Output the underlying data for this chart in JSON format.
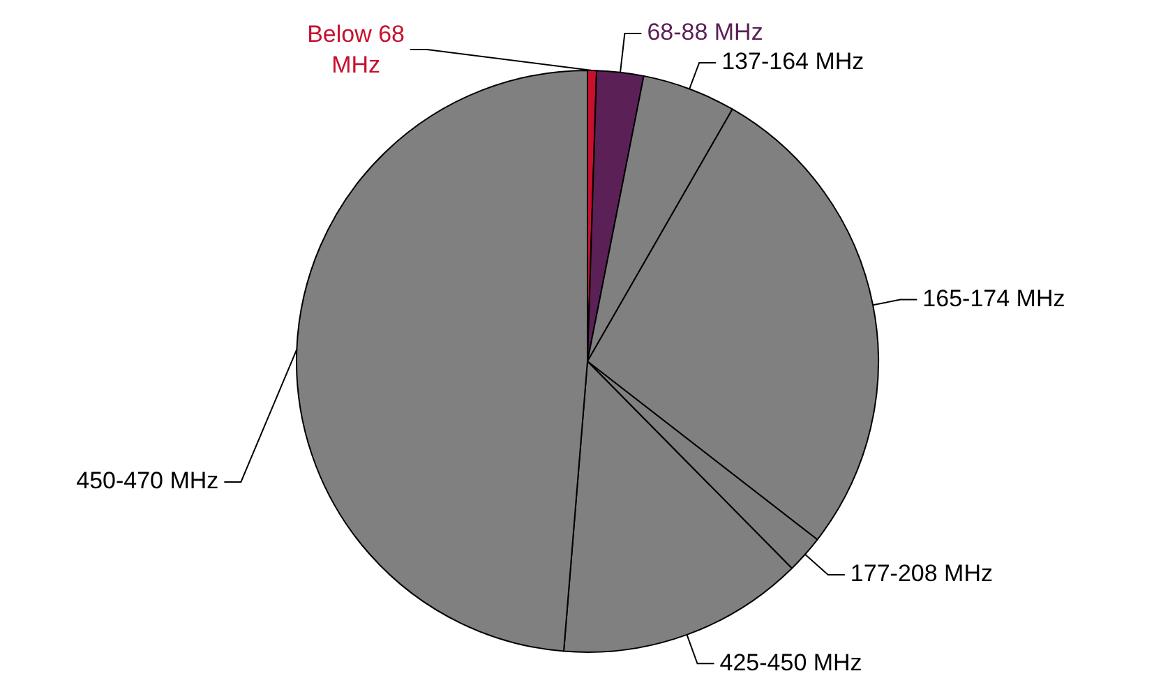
{
  "chart_data": {
    "type": "pie",
    "categories": [
      "Below 68 MHz",
      "68-88 MHz",
      "137-164 MHz",
      "165-174 MHz",
      "177-208 MHz",
      "425-450 MHz",
      "450-470 MHz"
    ],
    "values": [
      0.5,
      2.6,
      5.2,
      27.2,
      2.1,
      13.7,
      48.7
    ],
    "colors": [
      "#c8102e",
      "#5b2157",
      "#808080",
      "#808080",
      "#808080",
      "#808080",
      "#808080"
    ],
    "legend": false
  }
}
